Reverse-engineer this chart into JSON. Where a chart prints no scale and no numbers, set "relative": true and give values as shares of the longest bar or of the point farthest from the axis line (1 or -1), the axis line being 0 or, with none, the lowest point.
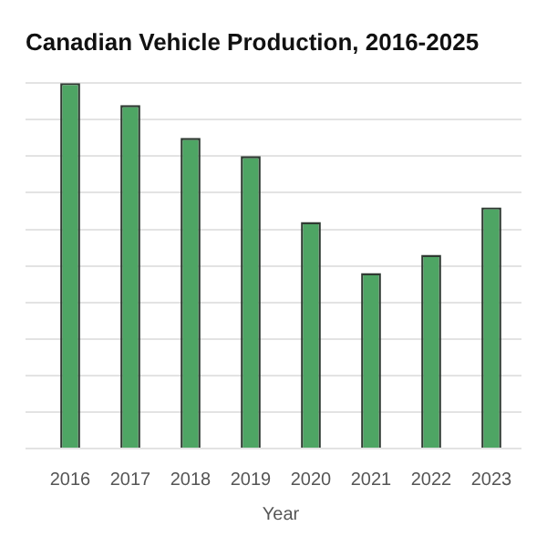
{
  "chart_data": {
    "type": "bar",
    "title": "Canadian Vehicle Production, 2016-2025",
    "xlabel": "Year",
    "categories": [
      "2016",
      "2017",
      "2018",
      "2019",
      "2020",
      "2021",
      "2022",
      "2023"
    ],
    "values": [
      1,
      0.94,
      0.85,
      0.8,
      0.62,
      0.48,
      0.53,
      0.66
    ],
    "color": "#4ea564",
    "relative": true,
    "grid": true
  }
}
